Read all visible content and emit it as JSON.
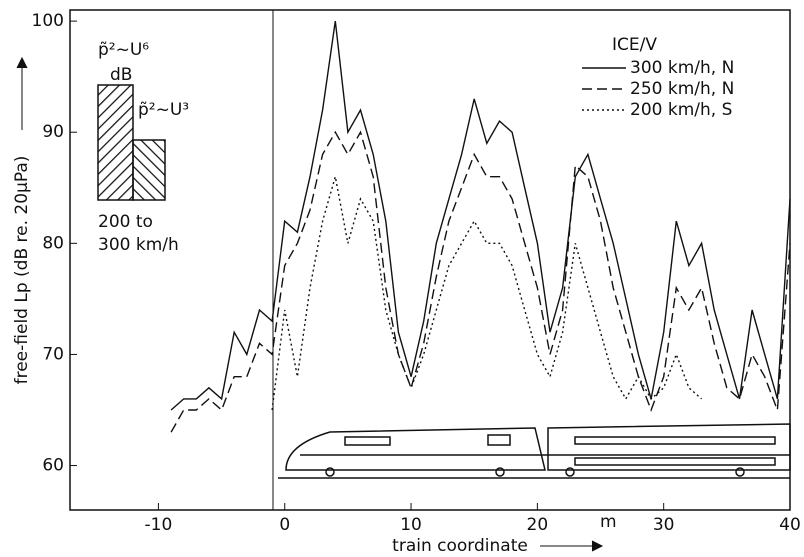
{
  "chart_data": {
    "type": "line",
    "xlabel": "train coordinate",
    "ylabel": "free-field Lp (dB re. 20µPa)",
    "x_unit": "m",
    "legend_title": "ICE/V",
    "inset": {
      "unit": "dB",
      "label_high": "p̃²~U⁶",
      "label_low": "p̃²~U³",
      "range_line1": "200 to",
      "range_line2": "300 km/h"
    },
    "xlim": [
      -17,
      40
    ],
    "ylim": [
      56,
      101
    ],
    "xticks": [
      -10,
      0,
      10,
      20,
      30,
      40
    ],
    "yticks": [
      60,
      70,
      80,
      90,
      100
    ],
    "x": [
      -9,
      -8,
      -7,
      -6,
      -5,
      -4,
      -3,
      -2,
      -1,
      0,
      1,
      2,
      3,
      4,
      5,
      6,
      7,
      8,
      9,
      10,
      11,
      12,
      13,
      14,
      15,
      16,
      17,
      18,
      19,
      20,
      21,
      22,
      23,
      24,
      25,
      26,
      27,
      28,
      29,
      30,
      31,
      32,
      33,
      34,
      35,
      36,
      37,
      38,
      39,
      40
    ],
    "series": [
      {
        "name": "300 km/h, N",
        "color": "#111",
        "dash": "solid",
        "values": [
          65,
          66,
          66,
          67,
          66,
          72,
          70,
          74,
          73,
          82,
          81,
          86,
          92,
          100,
          90,
          92,
          88,
          82,
          72,
          68,
          73,
          80,
          84,
          88,
          93,
          89,
          91,
          90,
          85,
          80,
          72,
          76,
          86,
          88,
          84,
          80,
          75,
          70,
          66,
          72,
          82,
          78,
          80,
          74,
          70,
          66,
          74,
          70,
          66,
          84
        ]
      },
      {
        "name": "250 km/h, N",
        "color": "#111",
        "dash": "dashed",
        "values": [
          63,
          65,
          65,
          66,
          65,
          68,
          68,
          71,
          70,
          78,
          80,
          83,
          88,
          90,
          88,
          90,
          86,
          76,
          70,
          67,
          71,
          77,
          82,
          85,
          88,
          86,
          86,
          84,
          80,
          76,
          70,
          74,
          87,
          86,
          82,
          76,
          72,
          68,
          65,
          68,
          76,
          74,
          76,
          71,
          67,
          66,
          70,
          68,
          65,
          80
        ]
      },
      {
        "name": "200 km/h, S",
        "color": "#111",
        "dash": "dotted",
        "values": [
          null,
          null,
          null,
          null,
          null,
          null,
          null,
          null,
          65,
          74,
          68,
          76,
          82,
          86,
          80,
          84,
          82,
          74,
          70,
          67,
          70,
          74,
          78,
          80,
          82,
          80,
          80,
          78,
          74,
          70,
          68,
          72,
          80,
          76,
          72,
          68,
          66,
          68,
          66,
          67,
          70,
          67,
          66,
          null,
          null,
          null,
          null,
          null,
          null,
          null
        ]
      }
    ]
  }
}
